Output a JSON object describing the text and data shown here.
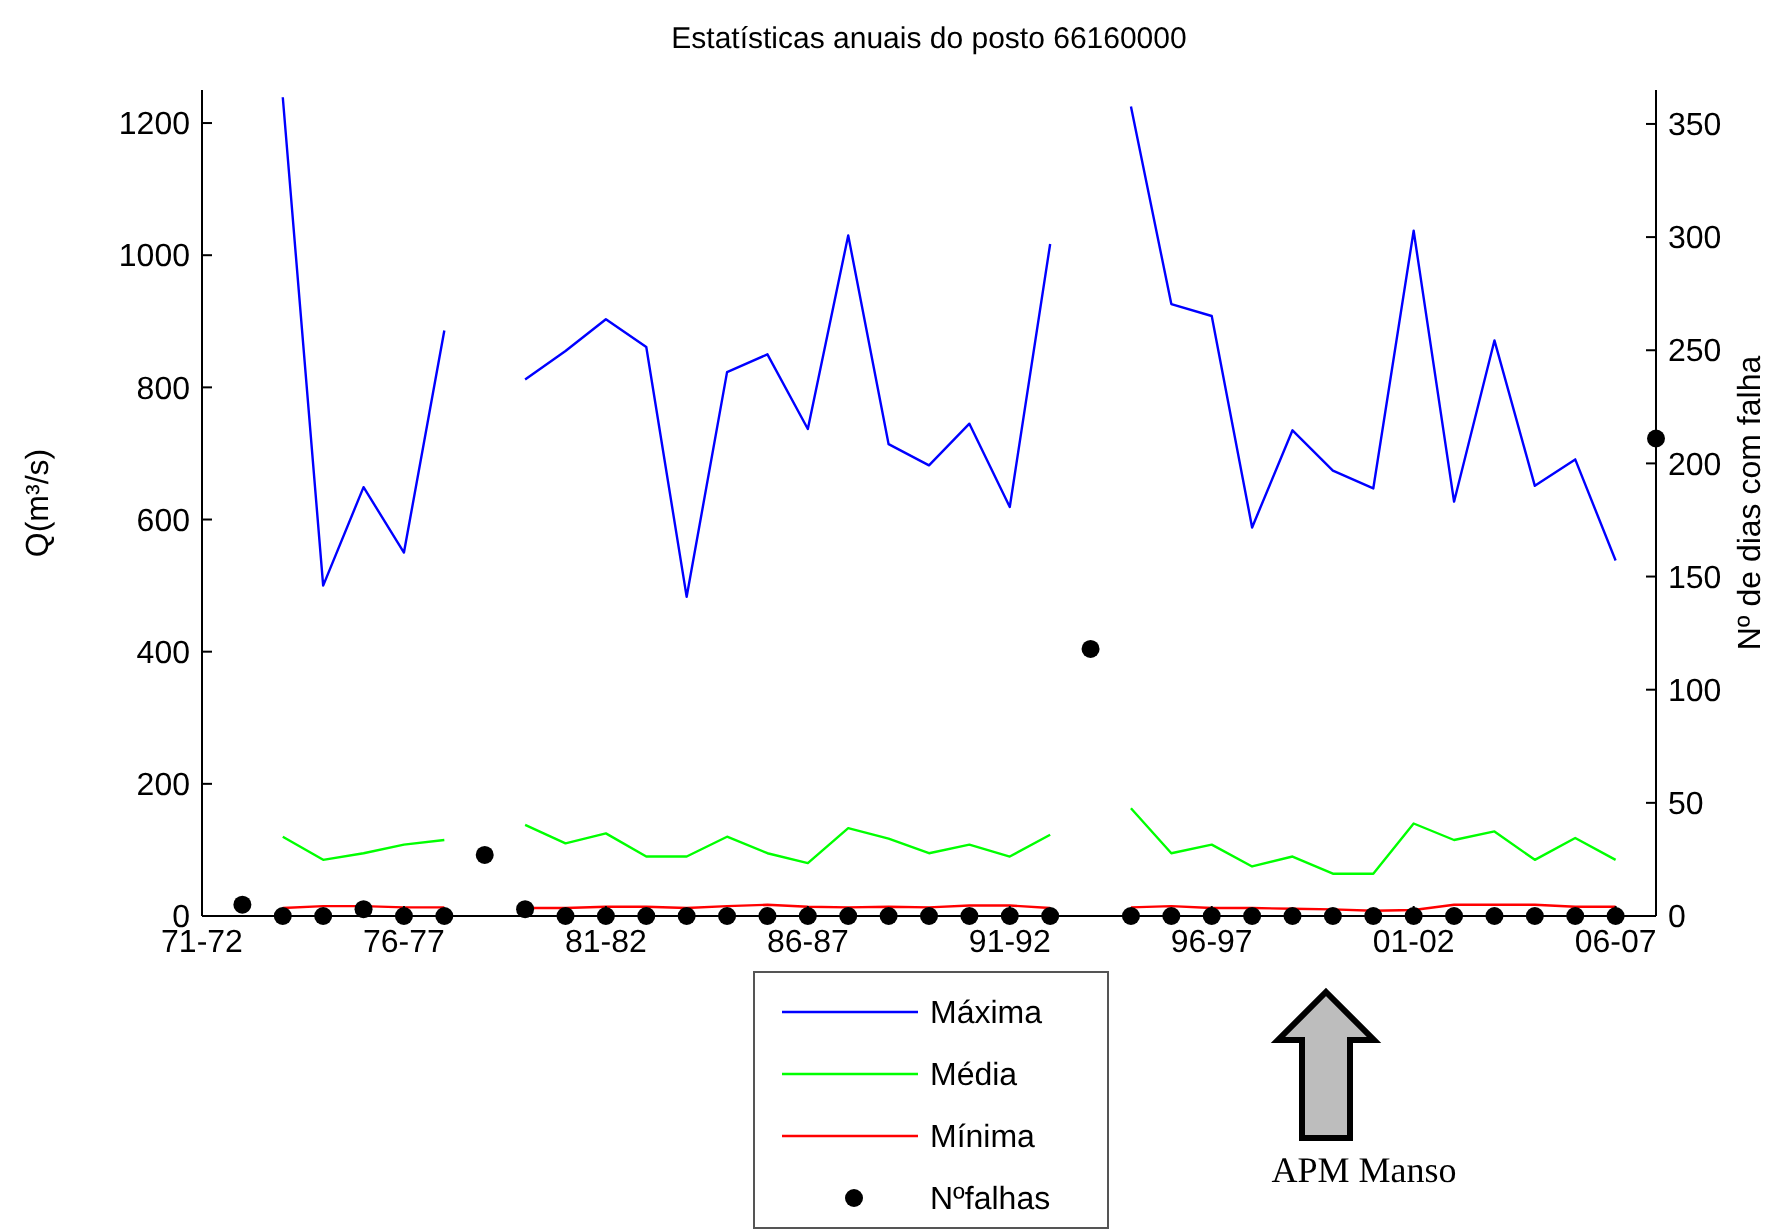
{
  "chart_data": {
    "type": "line",
    "title": "Estatísticas anuais do posto 66160000",
    "ylabel": "Q(m³/s)",
    "y2label": "Nº de dias com falha",
    "categories": [
      "71-72",
      null,
      null,
      null,
      null,
      "76-77",
      null,
      null,
      null,
      null,
      "81-82",
      null,
      null,
      null,
      null,
      "86-87",
      null,
      null,
      null,
      null,
      "91-92",
      null,
      null,
      null,
      null,
      "96-97",
      null,
      null,
      null,
      null,
      "01-02",
      null,
      null,
      null,
      null,
      "06-07",
      null
    ],
    "series": [
      {
        "name": "Máxima",
        "color": "#0000ff",
        "values": [
          null,
          null,
          1239,
          500,
          649,
          550,
          886,
          null,
          812,
          855,
          903,
          861,
          483,
          823,
          850,
          737,
          1030,
          714,
          682,
          745,
          619,
          1017,
          null,
          1225,
          926,
          908,
          588,
          735,
          674,
          647,
          1037,
          627,
          871,
          651,
          691,
          538,
          null
        ]
      },
      {
        "name": "Média",
        "color": "#00ff00",
        "values": [
          null,
          null,
          120,
          85,
          95,
          108,
          115,
          null,
          138,
          110,
          125,
          90,
          90,
          120,
          95,
          80,
          133,
          117,
          95,
          108,
          90,
          123,
          null,
          163,
          95,
          108,
          75,
          90,
          64,
          64,
          140,
          115,
          128,
          85,
          118,
          85,
          null
        ]
      },
      {
        "name": "Mínima",
        "color": "#ff0000",
        "values": [
          null,
          null,
          12,
          15,
          15,
          13,
          13,
          null,
          12,
          12,
          14,
          14,
          12,
          15,
          17,
          14,
          13,
          14,
          13,
          16,
          16,
          12,
          null,
          13,
          15,
          12,
          12,
          11,
          10,
          8,
          9,
          17,
          17,
          17,
          14,
          14,
          null
        ]
      },
      {
        "name": "Nºfalhas",
        "type": "scatter",
        "axis": "y2",
        "marker": "circle",
        "color": "#000000",
        "values": [
          null,
          5,
          0,
          0,
          3,
          0,
          0,
          27,
          3,
          0,
          0,
          0,
          0,
          0,
          0,
          0,
          0,
          0,
          0,
          0,
          0,
          0,
          118,
          0,
          0,
          0,
          0,
          0,
          0,
          0,
          0,
          0,
          0,
          0,
          0,
          0,
          211
        ]
      }
    ],
    "ylim": [
      0,
      1250
    ],
    "yticks": [
      0,
      200,
      400,
      600,
      800,
      1000,
      1200
    ],
    "y2lim": [
      0,
      365
    ],
    "y2ticks": [
      0,
      50,
      100,
      150,
      200,
      250,
      300,
      350
    ],
    "grid": false,
    "legend": "bottom",
    "annotations": [
      "APM Manso"
    ]
  }
}
